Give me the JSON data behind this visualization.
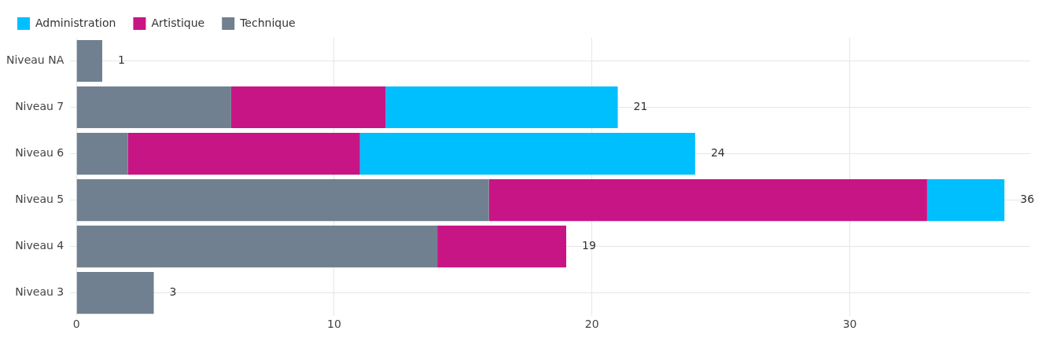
{
  "chart_data": {
    "type": "bar",
    "orientation": "horizontal",
    "stacked": true,
    "categories": [
      "Niveau NA",
      "Niveau 7",
      "Niveau 6",
      "Niveau 5",
      "Niveau 4",
      "Niveau 3"
    ],
    "series": [
      {
        "name": "Technique",
        "color": "#708090",
        "values": [
          1,
          6,
          2,
          16,
          14,
          3
        ]
      },
      {
        "name": "Artistique",
        "color": "#c71585",
        "values": [
          null,
          6,
          9,
          17,
          5,
          null
        ]
      },
      {
        "name": "Administration",
        "color": "#00bfff",
        "values": [
          null,
          9,
          13,
          3,
          null,
          null
        ]
      }
    ],
    "totals": [
      "1",
      "21",
      "24",
      "36",
      "19",
      "3"
    ],
    "xlim": [
      0,
      37
    ],
    "xticks": [
      0,
      10,
      20,
      30
    ],
    "grid": true,
    "legend": "top left"
  }
}
